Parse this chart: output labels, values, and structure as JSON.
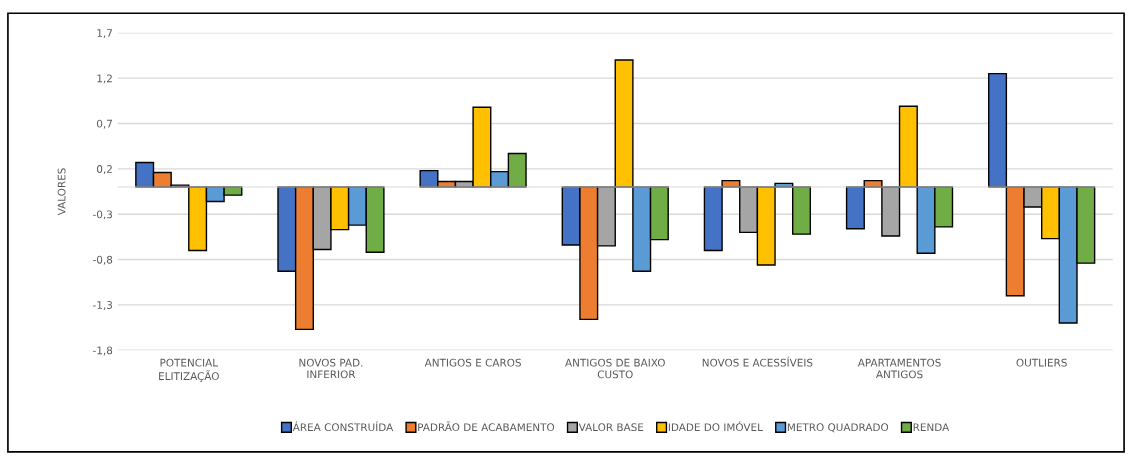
{
  "chart_data": {
    "type": "bar",
    "ylabel": "VALORES",
    "categories": [
      "POTENCIAL ELITIZAÇÃO",
      "NOVOS PAD. INFERIOR",
      "ANTIGOS E CAROS",
      "ANTIGOS DE BAIXO CUSTO",
      "NOVOS E ACESSÍVEIS",
      "APARTAMENTOS ANTIGOS",
      "OUTLIERS"
    ],
    "series": [
      {
        "name": "ÁREA CONSTRUÍDA",
        "color": "#4472c4",
        "values": [
          0.27,
          -0.93,
          0.18,
          -0.64,
          -0.7,
          -0.46,
          1.25
        ]
      },
      {
        "name": "PADRÃO DE ACABAMENTO",
        "color": "#ed7d31",
        "values": [
          0.16,
          -1.57,
          0.06,
          -1.46,
          0.07,
          0.07,
          -1.2
        ]
      },
      {
        "name": "VALOR BASE",
        "color": "#a5a5a5",
        "values": [
          0.02,
          -0.69,
          0.06,
          -0.65,
          -0.5,
          -0.54,
          -0.22
        ]
      },
      {
        "name": "IDADE DO IMÓVEL",
        "color": "#ffc000",
        "values": [
          -0.7,
          -0.47,
          0.88,
          1.4,
          -0.86,
          0.89,
          -0.57
        ]
      },
      {
        "name": "METRO QUADRADO",
        "color": "#5b9bd5",
        "values": [
          -0.16,
          -0.42,
          0.17,
          -0.93,
          0.04,
          -0.73,
          -1.5
        ]
      },
      {
        "name": "RENDA",
        "color": "#70ad47",
        "values": [
          -0.09,
          -0.72,
          0.37,
          -0.58,
          -0.52,
          -0.44,
          -0.84
        ]
      }
    ],
    "ylim": [
      -1.8,
      1.7
    ],
    "yticks": [
      {
        "value": -1.8,
        "label": "-1,8"
      },
      {
        "value": -1.3,
        "label": "-1,3"
      },
      {
        "value": -0.8,
        "label": "-0,8"
      },
      {
        "value": -0.3,
        "label": "-0,3"
      },
      {
        "value": 0.2,
        "label": "0,2"
      },
      {
        "value": 0.7,
        "label": "0,7"
      },
      {
        "value": 1.2,
        "label": "1,2"
      },
      {
        "value": 1.7,
        "label": "1,7"
      }
    ],
    "grid": "y",
    "legend": "bottom"
  }
}
